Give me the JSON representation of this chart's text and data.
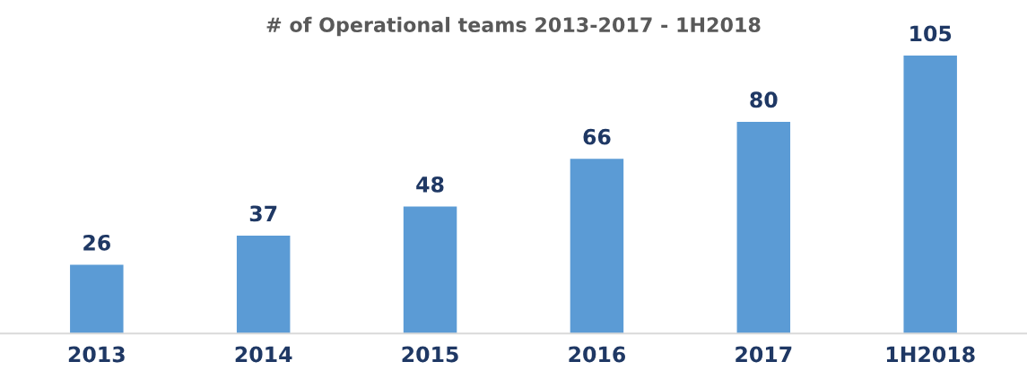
{
  "chart_data": {
    "type": "bar",
    "title": "# of Operational teams 2013-2017 - 1H2018",
    "categories": [
      "2013",
      "2014",
      "2015",
      "2016",
      "2017",
      "1H2018"
    ],
    "values": [
      26,
      37,
      48,
      66,
      80,
      105
    ],
    "color": "#5b9bd5",
    "data_labels": true,
    "grid": false,
    "legend": false
  }
}
